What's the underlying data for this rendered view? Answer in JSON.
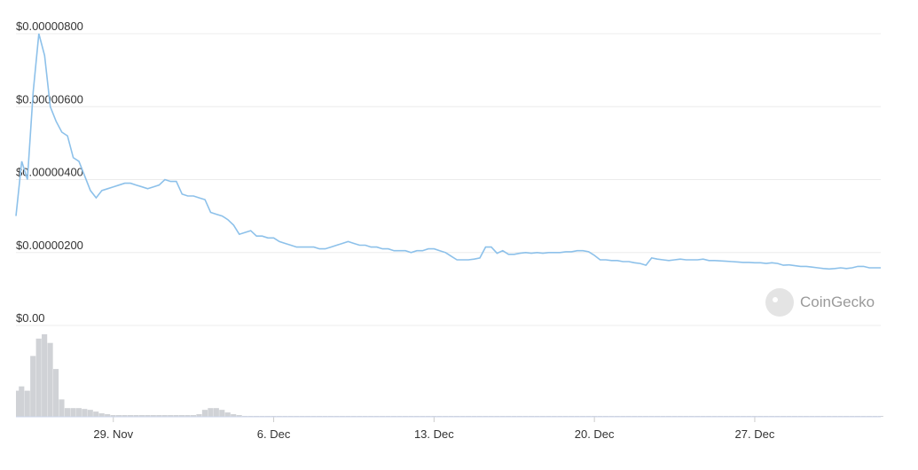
{
  "chart_data": [
    {
      "type": "line",
      "categories": [
        null,
        null,
        null,
        null,
        null,
        null,
        null,
        null,
        null,
        null,
        null,
        null,
        null,
        null,
        null,
        null,
        null,
        "29. Nov",
        null,
        null,
        null,
        null,
        null,
        null,
        null,
        null,
        null,
        null,
        null,
        null,
        null,
        null,
        null,
        null,
        null,
        null,
        null,
        null,
        null,
        null,
        null,
        null,
        null,
        null,
        null,
        "6. Dec",
        null,
        null,
        null,
        null,
        null,
        null,
        null,
        null,
        null,
        null,
        null,
        null,
        null,
        null,
        null,
        null,
        null,
        null,
        null,
        null,
        null,
        null,
        null,
        null,
        null,
        null,
        null,
        "13. Dec",
        null,
        null,
        null,
        null,
        null,
        null,
        null,
        null,
        null,
        null,
        null,
        null,
        null,
        null,
        null,
        null,
        null,
        null,
        null,
        null,
        null,
        null,
        null,
        null,
        null,
        null,
        null,
        "20. Dec",
        null,
        null,
        null,
        null,
        null,
        null,
        null,
        null,
        null,
        null,
        null,
        null,
        null,
        null,
        null,
        null,
        null,
        null,
        null,
        null,
        null,
        null,
        null,
        null,
        null,
        null,
        null,
        "27. Dec",
        null,
        null,
        null,
        null,
        null,
        null,
        null,
        null,
        null,
        null,
        null,
        null,
        null,
        null,
        null,
        null,
        null,
        null,
        null,
        null,
        null,
        null
      ],
      "values": [
        3e-06,
        4.5e-06,
        4e-06,
        6.4e-06,
        8e-06,
        7.4e-06,
        6e-06,
        5.6e-06,
        5.3e-06,
        5.2e-06,
        4.6e-06,
        4.5e-06,
        4.1e-06,
        3.7e-06,
        3.5e-06,
        3.7e-06,
        3.75e-06,
        3.8e-06,
        3.85e-06,
        3.9e-06,
        3.9e-06,
        3.85e-06,
        3.8e-06,
        3.75e-06,
        3.8e-06,
        3.85e-06,
        4e-06,
        3.95e-06,
        3.95e-06,
        3.6e-06,
        3.55e-06,
        3.55e-06,
        3.5e-06,
        3.45e-06,
        3.1e-06,
        3.05e-06,
        3e-06,
        2.9e-06,
        2.75e-06,
        2.5e-06,
        2.55e-06,
        2.6e-06,
        2.45e-06,
        2.45e-06,
        2.4e-06,
        2.4e-06,
        2.3e-06,
        2.25e-06,
        2.2e-06,
        2.15e-06,
        2.15e-06,
        2.15e-06,
        2.15e-06,
        2.1e-06,
        2.1e-06,
        2.15e-06,
        2.2e-06,
        2.25e-06,
        2.3e-06,
        2.25e-06,
        2.2e-06,
        2.2e-06,
        2.15e-06,
        2.15e-06,
        2.1e-06,
        2.1e-06,
        2.05e-06,
        2.05e-06,
        2.05e-06,
        2e-06,
        2.05e-06,
        2.05e-06,
        2.1e-06,
        2.1e-06,
        2.05e-06,
        2e-06,
        1.9e-06,
        1.8e-06,
        1.8e-06,
        1.8e-06,
        1.82e-06,
        1.85e-06,
        2.15e-06,
        2.15e-06,
        1.98e-06,
        2.05e-06,
        1.95e-06,
        1.95e-06,
        1.98e-06,
        2e-06,
        1.98e-06,
        2e-06,
        1.98e-06,
        2e-06,
        2e-06,
        2e-06,
        2.02e-06,
        2.02e-06,
        2.05e-06,
        2.05e-06,
        2.02e-06,
        1.92e-06,
        1.8e-06,
        1.8e-06,
        1.78e-06,
        1.78e-06,
        1.75e-06,
        1.75e-06,
        1.72e-06,
        1.7e-06,
        1.65e-06,
        1.85e-06,
        1.82e-06,
        1.8e-06,
        1.78e-06,
        1.8e-06,
        1.82e-06,
        1.8e-06,
        1.8e-06,
        1.8e-06,
        1.82e-06,
        1.78e-06,
        1.78e-06,
        1.77e-06,
        1.76e-06,
        1.75e-06,
        1.74e-06,
        1.73e-06,
        1.73e-06,
        1.72e-06,
        1.72e-06,
        1.7e-06,
        1.72e-06,
        1.7e-06,
        1.65e-06,
        1.66e-06,
        1.64e-06,
        1.62e-06,
        1.62e-06,
        1.6e-06,
        1.58e-06,
        1.56e-06,
        1.55e-06,
        1.56e-06,
        1.58e-06,
        1.56e-06,
        1.58e-06,
        1.62e-06,
        1.62e-06,
        1.58e-06,
        1.58e-06,
        1.58e-06
      ],
      "color": "#8dc1ea",
      "ylim": [
        0,
        8e-06
      ],
      "yticks": [
        {
          "value": 0,
          "label": "$0.00"
        },
        {
          "value": 2e-06,
          "label": "$0.00000200"
        },
        {
          "value": 4e-06,
          "label": "$0.00000400"
        },
        {
          "value": 6e-06,
          "label": "$0.00000600"
        },
        {
          "value": 8e-06,
          "label": "$0.00000800"
        }
      ],
      "grid": true
    },
    {
      "type": "bar",
      "values": [
        30,
        35,
        30,
        70,
        90,
        95,
        85,
        55,
        20,
        10,
        10,
        10,
        9,
        8,
        6,
        4,
        3,
        2,
        2,
        2,
        2,
        2,
        2,
        2,
        2,
        2,
        2,
        2,
        2,
        2,
        2,
        2,
        3,
        8,
        10,
        10,
        8,
        5,
        3,
        2,
        1,
        1,
        1,
        1,
        1,
        1,
        1,
        1,
        1,
        1,
        1,
        1,
        1,
        1,
        1,
        1,
        1,
        1,
        1,
        1,
        1,
        1,
        1,
        1,
        1,
        1,
        1,
        1,
        1,
        1,
        1,
        1,
        1,
        1,
        1,
        1,
        1,
        1,
        1,
        1,
        1,
        1,
        1,
        1,
        1,
        1,
        1,
        1,
        1,
        1,
        1,
        1,
        1,
        1,
        1,
        1,
        1,
        1,
        1,
        1,
        1,
        1,
        1,
        1,
        1,
        1,
        1,
        1,
        1,
        1,
        1,
        1,
        1,
        1,
        1,
        1,
        1,
        1,
        1,
        1,
        1,
        1,
        1,
        1,
        1,
        1,
        1,
        1,
        1,
        1,
        1,
        1,
        1,
        1,
        1,
        1,
        1,
        1,
        1,
        1,
        1,
        1,
        1,
        1,
        1,
        1,
        1,
        1,
        1,
        1,
        1,
        1
      ],
      "color": "#d0d2d6",
      "ylim": [
        0,
        100
      ]
    }
  ],
  "watermark": "CoinGecko"
}
